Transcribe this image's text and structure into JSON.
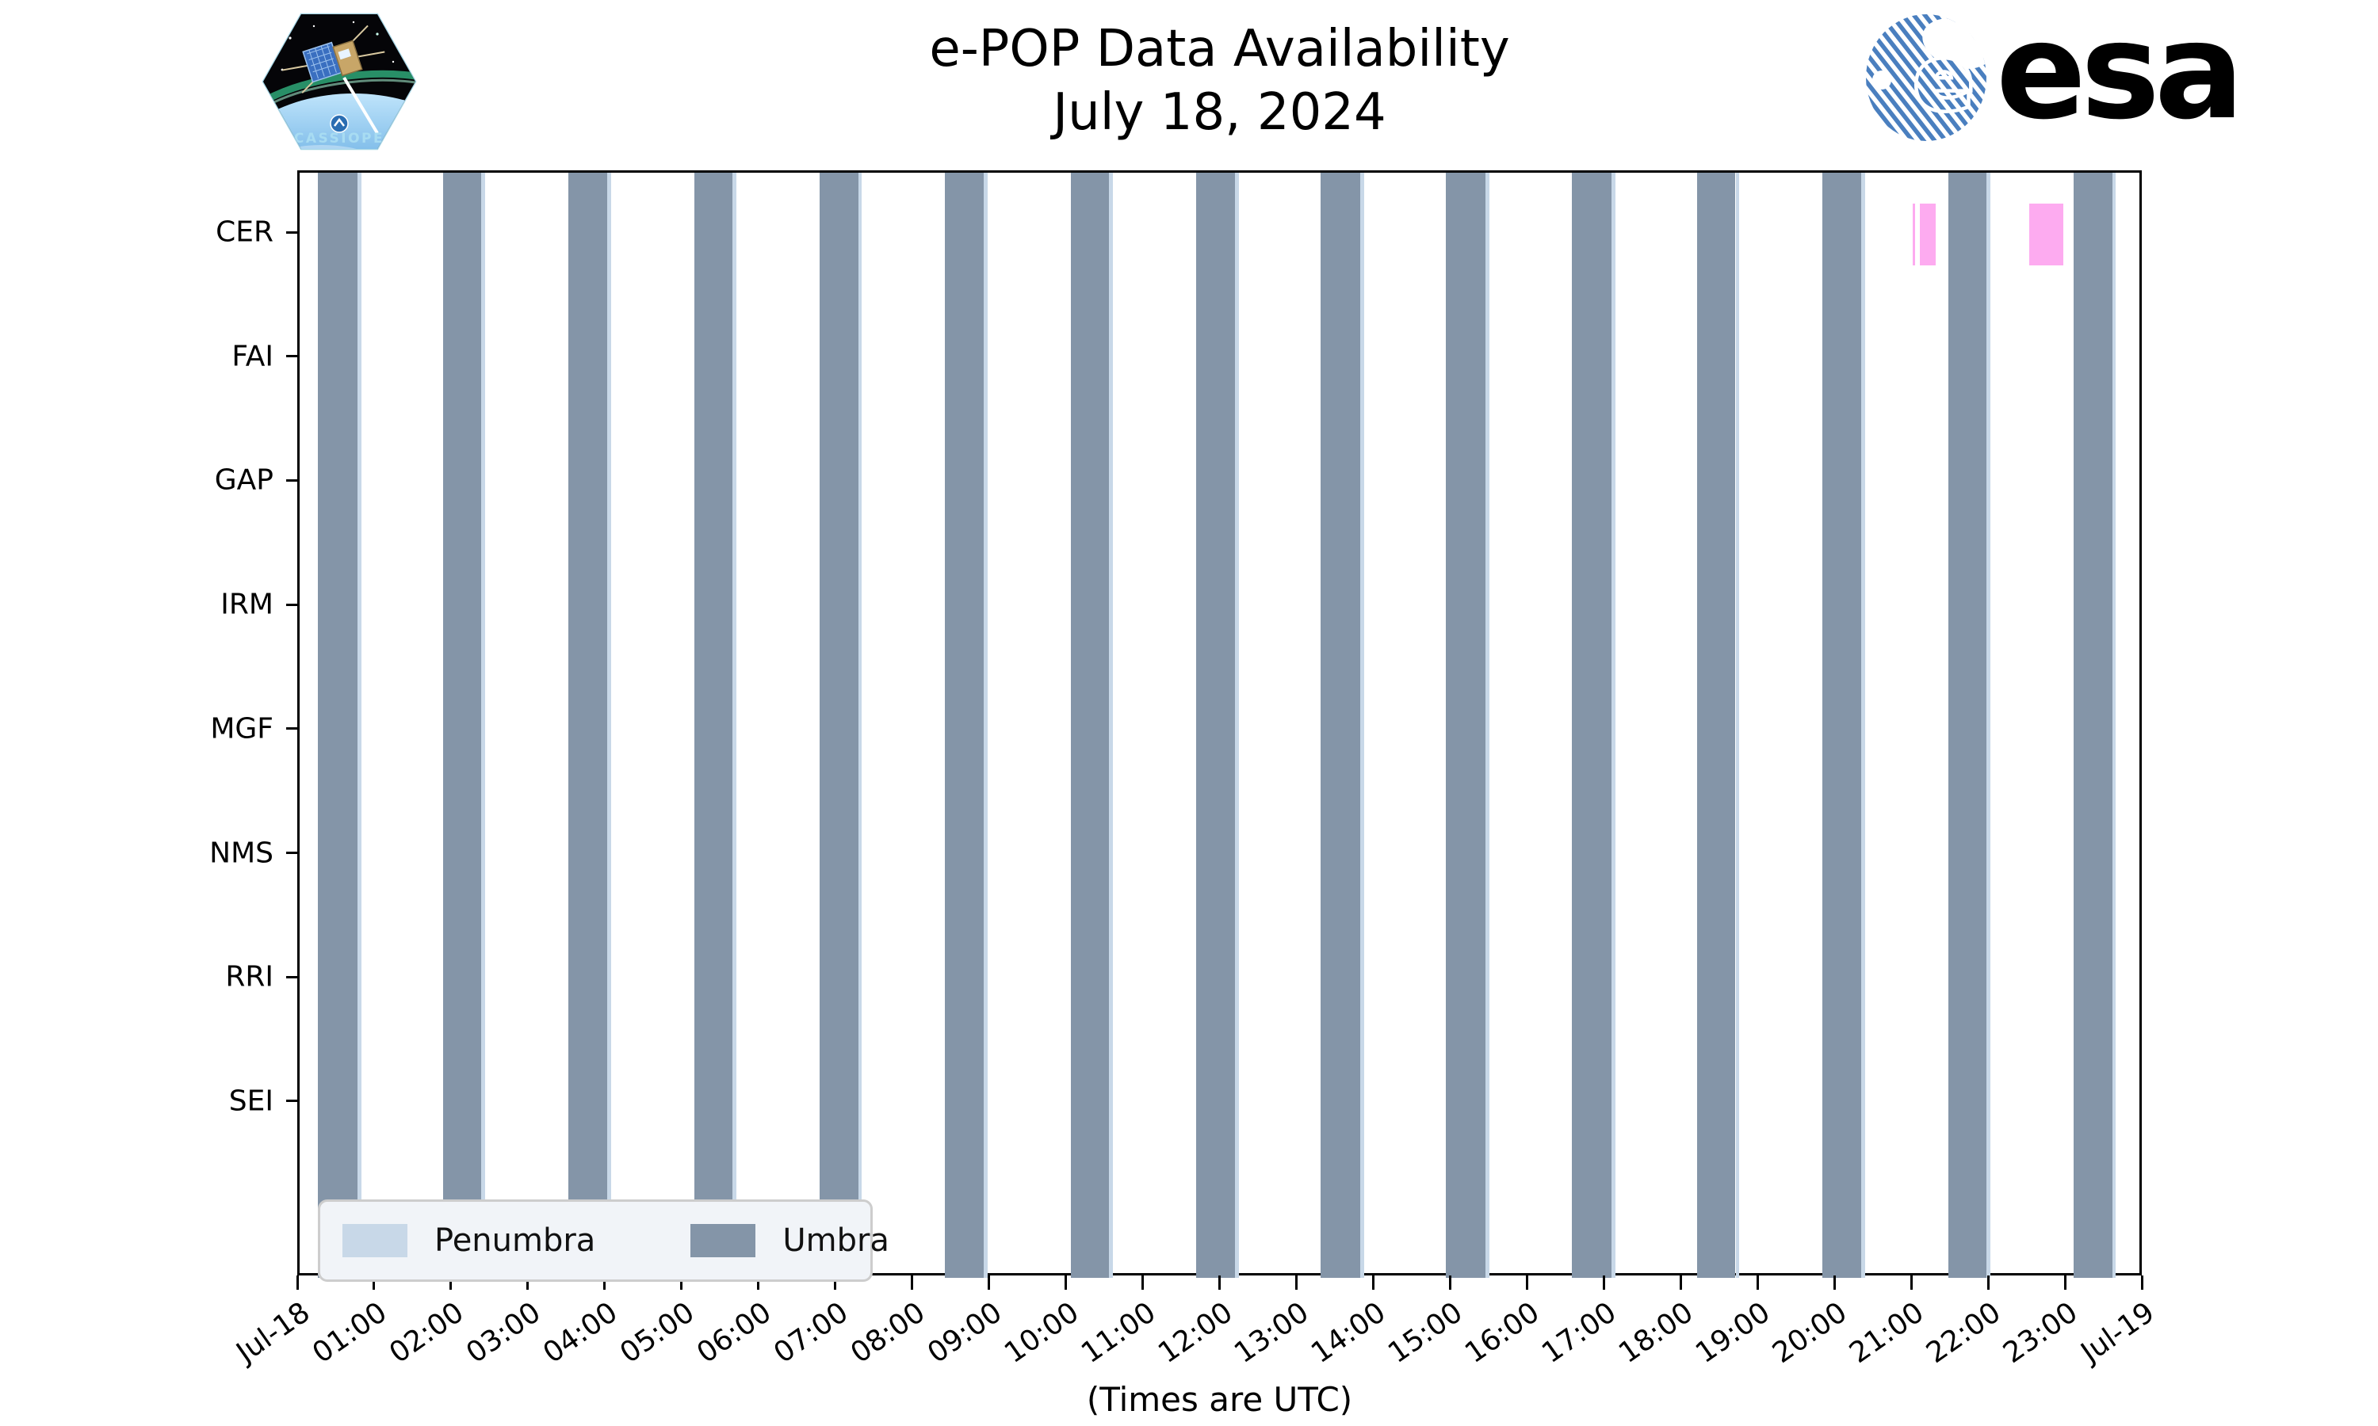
{
  "header": {
    "title": "e-POP Data Availability",
    "subtitle": "July 18, 2024"
  },
  "branding": {
    "cassiope_label": "CASSIOPE",
    "esa_wordmark": "esa",
    "esa_navy": "#1f2d7d",
    "esa_stripe_blue": "#4a7fbf",
    "patch_border": "#a6d6e6"
  },
  "chart_data": {
    "type": "bar",
    "subtype": "availability-timeline",
    "title": "e-POP Data Availability",
    "subtitle": "July 18, 2024",
    "xlabel": "(Times are UTC)",
    "grid": false,
    "x_axis": {
      "range_hours": [
        0,
        24
      ],
      "tick_labels": [
        "Jul-18",
        "01:00",
        "02:00",
        "03:00",
        "04:00",
        "05:00",
        "06:00",
        "07:00",
        "08:00",
        "09:00",
        "10:00",
        "11:00",
        "12:00",
        "13:00",
        "14:00",
        "15:00",
        "16:00",
        "17:00",
        "18:00",
        "19:00",
        "20:00",
        "21:00",
        "22:00",
        "23:00",
        "Jul-19"
      ]
    },
    "y_axis": {
      "categories": [
        "CER",
        "FAI",
        "GAP",
        "IRM",
        "MGF",
        "NMS",
        "RRI",
        "SEI"
      ]
    },
    "legend": {
      "position": "lower-left",
      "entries": [
        {
          "label": "Penumbra",
          "color": "#c8d8e8"
        },
        {
          "label": "Umbra",
          "color": "#8495a8"
        }
      ]
    },
    "eclipse": {
      "umbra_intervals_utc": [
        [
          "00:14",
          "00:45"
        ],
        [
          "01:52",
          "02:22"
        ],
        [
          "03:30",
          "04:00"
        ],
        [
          "05:08",
          "05:38"
        ],
        [
          "06:46",
          "07:16"
        ],
        [
          "08:24",
          "08:54"
        ],
        [
          "10:02",
          "10:32"
        ],
        [
          "11:40",
          "12:10"
        ],
        [
          "13:17",
          "13:48"
        ],
        [
          "14:55",
          "15:26"
        ],
        [
          "16:33",
          "17:04"
        ],
        [
          "18:11",
          "18:41"
        ],
        [
          "19:49",
          "20:19"
        ],
        [
          "21:27",
          "21:57"
        ],
        [
          "23:05",
          "23:35"
        ]
      ],
      "penumbra_intervals_utc": [
        [
          "00:45",
          "00:48"
        ],
        [
          "02:22",
          "02:25"
        ],
        [
          "04:00",
          "04:03"
        ],
        [
          "05:38",
          "05:41"
        ],
        [
          "07:16",
          "07:19"
        ],
        [
          "08:54",
          "08:57"
        ],
        [
          "10:32",
          "10:35"
        ],
        [
          "12:10",
          "12:13"
        ],
        [
          "13:48",
          "13:51"
        ],
        [
          "15:26",
          "15:29"
        ],
        [
          "17:04",
          "17:07"
        ],
        [
          "18:41",
          "18:44"
        ],
        [
          "20:19",
          "20:22"
        ],
        [
          "21:57",
          "22:00"
        ],
        [
          "23:35",
          "23:38"
        ]
      ]
    },
    "availability_series": [
      {
        "instrument": "CER",
        "color": "#fdabf0",
        "intervals_utc": [
          [
            "20:59",
            "21:01"
          ],
          [
            "21:05",
            "21:17"
          ],
          [
            "22:30",
            "22:57"
          ]
        ]
      },
      {
        "instrument": "FAI",
        "color": "#fdabf0",
        "intervals_utc": []
      },
      {
        "instrument": "GAP",
        "color": "#fdabf0",
        "intervals_utc": []
      },
      {
        "instrument": "IRM",
        "color": "#fdabf0",
        "intervals_utc": []
      },
      {
        "instrument": "MGF",
        "color": "#fdabf0",
        "intervals_utc": []
      },
      {
        "instrument": "NMS",
        "color": "#fdabf0",
        "intervals_utc": []
      },
      {
        "instrument": "RRI",
        "color": "#fdabf0",
        "intervals_utc": []
      },
      {
        "instrument": "SEI",
        "color": "#fdabf0",
        "intervals_utc": []
      }
    ]
  }
}
